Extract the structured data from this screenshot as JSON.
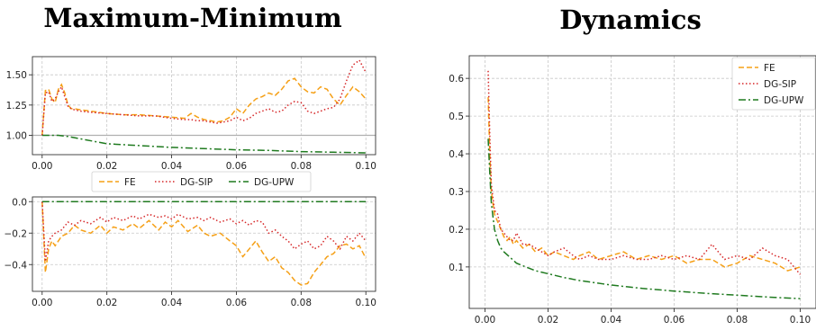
{
  "titles": {
    "left": "Maximum-Minimum",
    "right": "Dynamics"
  },
  "chart_data": [
    {
      "id": "maxmin_top",
      "type": "line",
      "xlim": [
        -0.003,
        0.103
      ],
      "ylim": [
        0.84,
        1.65
      ],
      "xticks": [
        0.0,
        0.02,
        0.04,
        0.06,
        0.08,
        0.1
      ],
      "xtick_labels": [
        "0.00",
        "0.02",
        "0.04",
        "0.06",
        "0.08",
        "0.10"
      ],
      "yticks": [
        1.0,
        1.25,
        1.5
      ],
      "ytick_labels": [
        "1.00",
        "1.25",
        "1.50"
      ],
      "grid": true,
      "hline": 1.0,
      "series": [
        {
          "name": "FE",
          "color": "#f5a017",
          "dash": "6 3",
          "x": [
            0,
            0.001,
            0.002,
            0.003,
            0.004,
            0.005,
            0.006,
            0.007,
            0.008,
            0.009,
            0.01,
            0.012,
            0.015,
            0.02,
            0.025,
            0.03,
            0.035,
            0.04,
            0.044,
            0.046,
            0.048,
            0.05,
            0.052,
            0.054,
            0.056,
            0.058,
            0.06,
            0.062,
            0.064,
            0.066,
            0.068,
            0.07,
            0.072,
            0.074,
            0.076,
            0.078,
            0.08,
            0.082,
            0.084,
            0.086,
            0.088,
            0.09,
            0.092,
            0.094,
            0.096,
            0.098,
            0.1
          ],
          "y": [
            1.0,
            1.37,
            1.38,
            1.3,
            1.27,
            1.38,
            1.42,
            1.35,
            1.25,
            1.22,
            1.22,
            1.21,
            1.2,
            1.18,
            1.17,
            1.17,
            1.16,
            1.15,
            1.14,
            1.18,
            1.15,
            1.13,
            1.12,
            1.11,
            1.12,
            1.15,
            1.22,
            1.18,
            1.25,
            1.3,
            1.32,
            1.35,
            1.33,
            1.38,
            1.45,
            1.47,
            1.4,
            1.36,
            1.35,
            1.4,
            1.38,
            1.3,
            1.25,
            1.33,
            1.4,
            1.36,
            1.3
          ]
        },
        {
          "name": "DG-SIP",
          "color": "#d62728",
          "dash": "1.5 2.5",
          "x": [
            0,
            0.001,
            0.002,
            0.003,
            0.004,
            0.005,
            0.006,
            0.007,
            0.008,
            0.009,
            0.01,
            0.012,
            0.015,
            0.02,
            0.025,
            0.03,
            0.035,
            0.04,
            0.044,
            0.046,
            0.048,
            0.05,
            0.052,
            0.054,
            0.056,
            0.058,
            0.06,
            0.062,
            0.064,
            0.066,
            0.068,
            0.07,
            0.072,
            0.074,
            0.076,
            0.078,
            0.08,
            0.082,
            0.084,
            0.086,
            0.088,
            0.09,
            0.092,
            0.094,
            0.096,
            0.098,
            0.1
          ],
          "y": [
            1.0,
            1.35,
            1.36,
            1.28,
            1.3,
            1.36,
            1.4,
            1.32,
            1.24,
            1.22,
            1.21,
            1.2,
            1.19,
            1.18,
            1.17,
            1.16,
            1.16,
            1.14,
            1.13,
            1.13,
            1.12,
            1.12,
            1.11,
            1.1,
            1.11,
            1.12,
            1.15,
            1.12,
            1.14,
            1.18,
            1.2,
            1.22,
            1.19,
            1.2,
            1.25,
            1.28,
            1.27,
            1.2,
            1.18,
            1.2,
            1.22,
            1.23,
            1.3,
            1.45,
            1.58,
            1.62,
            1.52
          ]
        },
        {
          "name": "DG-UPW",
          "color": "#1f7a1f",
          "dash": "8 3 2 3",
          "x": [
            0,
            0.002,
            0.005,
            0.008,
            0.012,
            0.016,
            0.02,
            0.03,
            0.04,
            0.05,
            0.06,
            0.07,
            0.08,
            0.09,
            0.1
          ],
          "y": [
            1.0,
            1.0,
            1.0,
            0.99,
            0.97,
            0.95,
            0.93,
            0.915,
            0.9,
            0.89,
            0.88,
            0.875,
            0.865,
            0.86,
            0.855
          ]
        }
      ]
    },
    {
      "id": "maxmin_bottom",
      "type": "line",
      "xlim": [
        -0.003,
        0.103
      ],
      "ylim": [
        -0.57,
        0.03
      ],
      "xticks": [
        0.0,
        0.02,
        0.04,
        0.06,
        0.08,
        0.1
      ],
      "xtick_labels": [
        "0.00",
        "0.02",
        "0.04",
        "0.06",
        "0.08",
        "0.10"
      ],
      "yticks": [
        0.0,
        -0.2,
        -0.4
      ],
      "ytick_labels": [
        "0.0",
        "−0.2",
        "−0.4"
      ],
      "grid": true,
      "series": [
        {
          "name": "FE",
          "color": "#f5a017",
          "dash": "6 3",
          "x": [
            0,
            0.001,
            0.002,
            0.003,
            0.004,
            0.006,
            0.008,
            0.01,
            0.012,
            0.015,
            0.018,
            0.02,
            0.022,
            0.025,
            0.028,
            0.03,
            0.033,
            0.036,
            0.038,
            0.04,
            0.042,
            0.045,
            0.048,
            0.05,
            0.052,
            0.055,
            0.058,
            0.06,
            0.062,
            0.064,
            0.066,
            0.068,
            0.07,
            0.072,
            0.074,
            0.076,
            0.078,
            0.08,
            0.082,
            0.084,
            0.086,
            0.088,
            0.09,
            0.092,
            0.094,
            0.096,
            0.098,
            0.1
          ],
          "y": [
            0.0,
            -0.45,
            -0.3,
            -0.25,
            -0.28,
            -0.22,
            -0.2,
            -0.15,
            -0.18,
            -0.2,
            -0.15,
            -0.2,
            -0.16,
            -0.18,
            -0.14,
            -0.17,
            -0.12,
            -0.18,
            -0.13,
            -0.16,
            -0.12,
            -0.19,
            -0.15,
            -0.2,
            -0.22,
            -0.2,
            -0.25,
            -0.28,
            -0.35,
            -0.3,
            -0.25,
            -0.32,
            -0.38,
            -0.35,
            -0.42,
            -0.45,
            -0.5,
            -0.53,
            -0.52,
            -0.45,
            -0.4,
            -0.35,
            -0.33,
            -0.28,
            -0.27,
            -0.3,
            -0.28,
            -0.36
          ]
        },
        {
          "name": "DG-SIP",
          "color": "#d62728",
          "dash": "1.5 2.5",
          "x": [
            0,
            0.001,
            0.002,
            0.003,
            0.004,
            0.006,
            0.008,
            0.01,
            0.012,
            0.015,
            0.018,
            0.02,
            0.022,
            0.025,
            0.028,
            0.03,
            0.033,
            0.036,
            0.038,
            0.04,
            0.042,
            0.045,
            0.048,
            0.05,
            0.052,
            0.055,
            0.058,
            0.06,
            0.062,
            0.064,
            0.066,
            0.068,
            0.07,
            0.072,
            0.074,
            0.076,
            0.078,
            0.08,
            0.082,
            0.084,
            0.086,
            0.088,
            0.09,
            0.092,
            0.094,
            0.096,
            0.098,
            0.1
          ],
          "y": [
            0.0,
            -0.38,
            -0.25,
            -0.22,
            -0.2,
            -0.18,
            -0.13,
            -0.15,
            -0.12,
            -0.14,
            -0.1,
            -0.13,
            -0.1,
            -0.12,
            -0.09,
            -0.11,
            -0.08,
            -0.1,
            -0.09,
            -0.11,
            -0.08,
            -0.11,
            -0.1,
            -0.12,
            -0.1,
            -0.13,
            -0.11,
            -0.14,
            -0.12,
            -0.15,
            -0.12,
            -0.13,
            -0.2,
            -0.18,
            -0.22,
            -0.25,
            -0.3,
            -0.27,
            -0.25,
            -0.3,
            -0.28,
            -0.22,
            -0.25,
            -0.3,
            -0.22,
            -0.25,
            -0.2,
            -0.25
          ]
        },
        {
          "name": "DG-UPW",
          "color": "#1f7a1f",
          "dash": "8 3 2 3",
          "x": [
            0,
            0.1
          ],
          "y": [
            0.0,
            0.0
          ]
        }
      ]
    },
    {
      "id": "dynamics",
      "type": "line",
      "xlim": [
        -0.005,
        0.105
      ],
      "ylim": [
        -0.01,
        0.66
      ],
      "xticks": [
        0.0,
        0.02,
        0.04,
        0.06,
        0.08,
        0.1
      ],
      "xtick_labels": [
        "0.00",
        "0.02",
        "0.04",
        "0.06",
        "0.08",
        "0.10"
      ],
      "yticks": [
        0.1,
        0.2,
        0.3,
        0.4,
        0.5,
        0.6
      ],
      "ytick_labels": [
        "0.1",
        "0.2",
        "0.3",
        "0.4",
        "0.5",
        "0.6"
      ],
      "grid": true,
      "legend": "top-right",
      "series": [
        {
          "name": "FE",
          "color": "#f5a017",
          "dash": "6 3",
          "x": [
            0.001,
            0.0015,
            0.002,
            0.003,
            0.004,
            0.005,
            0.006,
            0.007,
            0.008,
            0.009,
            0.01,
            0.012,
            0.014,
            0.016,
            0.018,
            0.02,
            0.022,
            0.025,
            0.028,
            0.03,
            0.033,
            0.036,
            0.04,
            0.044,
            0.048,
            0.052,
            0.056,
            0.06,
            0.064,
            0.068,
            0.072,
            0.076,
            0.08,
            0.084,
            0.088,
            0.092,
            0.096,
            0.1
          ],
          "y": [
            0.55,
            0.4,
            0.3,
            0.24,
            0.22,
            0.2,
            0.18,
            0.17,
            0.18,
            0.16,
            0.17,
            0.15,
            0.16,
            0.14,
            0.15,
            0.13,
            0.14,
            0.13,
            0.12,
            0.13,
            0.14,
            0.12,
            0.13,
            0.14,
            0.12,
            0.13,
            0.12,
            0.13,
            0.11,
            0.12,
            0.12,
            0.1,
            0.11,
            0.13,
            0.12,
            0.11,
            0.09,
            0.1
          ]
        },
        {
          "name": "DG-SIP",
          "color": "#d62728",
          "dash": "1.5 2.5",
          "x": [
            0.001,
            0.0015,
            0.002,
            0.003,
            0.004,
            0.005,
            0.006,
            0.007,
            0.008,
            0.009,
            0.01,
            0.012,
            0.014,
            0.016,
            0.018,
            0.02,
            0.022,
            0.025,
            0.028,
            0.03,
            0.033,
            0.036,
            0.04,
            0.044,
            0.048,
            0.052,
            0.056,
            0.06,
            0.064,
            0.068,
            0.072,
            0.076,
            0.08,
            0.084,
            0.088,
            0.092,
            0.096,
            0.1
          ],
          "y": [
            0.62,
            0.45,
            0.32,
            0.25,
            0.24,
            0.2,
            0.19,
            0.18,
            0.17,
            0.17,
            0.19,
            0.16,
            0.16,
            0.15,
            0.14,
            0.13,
            0.14,
            0.15,
            0.13,
            0.12,
            0.13,
            0.12,
            0.12,
            0.13,
            0.12,
            0.12,
            0.13,
            0.12,
            0.13,
            0.12,
            0.16,
            0.12,
            0.13,
            0.12,
            0.15,
            0.13,
            0.12,
            0.08
          ]
        },
        {
          "name": "DG-UPW",
          "color": "#1f7a1f",
          "dash": "8 3 2 3",
          "x": [
            0.001,
            0.0015,
            0.002,
            0.003,
            0.004,
            0.005,
            0.006,
            0.008,
            0.01,
            0.013,
            0.016,
            0.02,
            0.025,
            0.03,
            0.035,
            0.04,
            0.05,
            0.06,
            0.07,
            0.08,
            0.09,
            0.1
          ],
          "y": [
            0.44,
            0.35,
            0.27,
            0.2,
            0.17,
            0.15,
            0.14,
            0.125,
            0.11,
            0.1,
            0.09,
            0.082,
            0.072,
            0.064,
            0.058,
            0.052,
            0.043,
            0.036,
            0.03,
            0.025,
            0.02,
            0.016
          ]
        }
      ]
    }
  ],
  "legend_left": [
    "FE",
    "DG-SIP",
    "DG-UPW"
  ],
  "legend_right": [
    "FE",
    "DG-SIP",
    "DG-UPW"
  ]
}
